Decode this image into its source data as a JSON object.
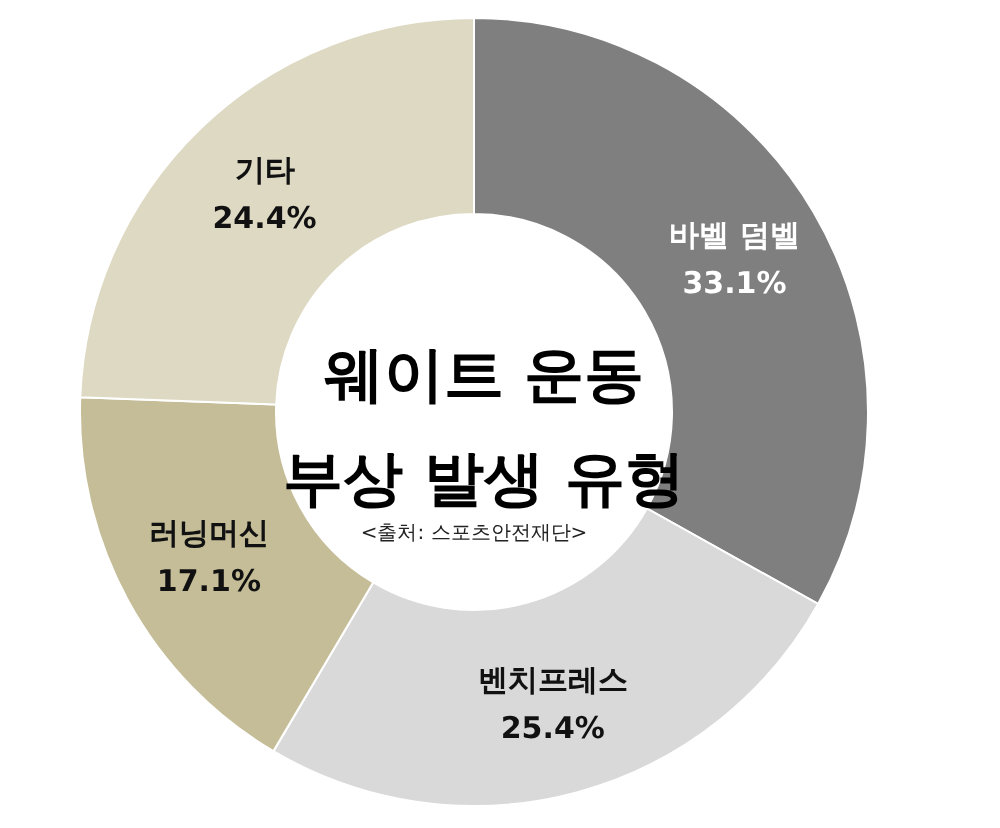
{
  "chart_data": {
    "type": "donut",
    "title": "웨이트 운동 부상 발생 유형",
    "categories": [
      "바벨 덤벨",
      "벤치프레스",
      "러닝머신",
      "기타"
    ],
    "values": [
      33.1,
      25.4,
      17.1,
      24.4
    ],
    "colors": [
      "#7f7f7f",
      "#d9d9d9",
      "#c4bd97",
      "#ddd9c3"
    ],
    "value_labels": [
      "33.1%",
      "25.4%",
      "17.1%",
      "24.4%"
    ],
    "annotations": [
      "<출처: 스포츠안전재단>"
    ]
  }
}
